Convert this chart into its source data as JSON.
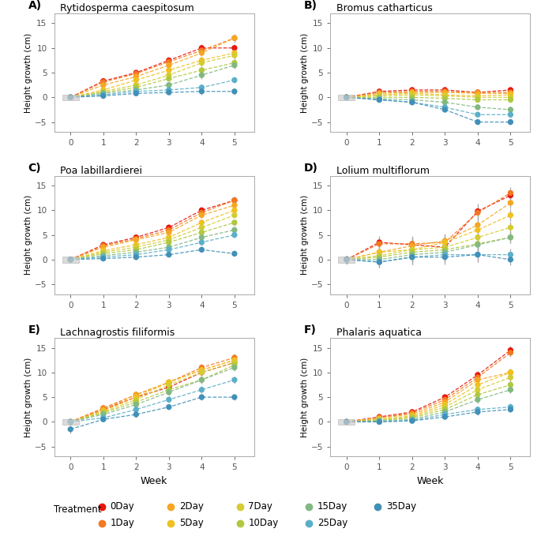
{
  "panels": [
    {
      "label": "A)",
      "title": "Rytidosperma caespitosum",
      "weeks": [
        0,
        1,
        2,
        3,
        4,
        5
      ],
      "series": {
        "0Day": {
          "means": [
            0.0,
            3.3,
            5.0,
            7.5,
            10.0,
            10.0
          ],
          "errors": [
            0.5,
            0.5,
            0.6,
            0.6,
            0.7,
            0.8
          ]
        },
        "1Day": {
          "means": [
            0.0,
            3.1,
            4.8,
            7.2,
            9.5,
            12.0
          ],
          "errors": [
            0.5,
            0.5,
            0.6,
            0.6,
            0.7,
            0.8
          ]
        },
        "2Day": {
          "means": [
            0.0,
            2.5,
            4.2,
            6.5,
            9.0,
            12.0
          ],
          "errors": [
            0.5,
            0.5,
            0.6,
            0.6,
            0.7,
            0.7
          ]
        },
        "5Day": {
          "means": [
            0.0,
            1.5,
            3.5,
            5.5,
            7.5,
            9.0
          ],
          "errors": [
            0.5,
            0.5,
            0.6,
            0.6,
            0.7,
            0.7
          ]
        },
        "7Day": {
          "means": [
            0.0,
            1.2,
            2.5,
            4.5,
            7.0,
            8.5
          ],
          "errors": [
            0.5,
            0.5,
            0.6,
            0.6,
            0.7,
            0.7
          ]
        },
        "10Day": {
          "means": [
            0.0,
            1.0,
            2.0,
            3.8,
            5.5,
            7.0
          ],
          "errors": [
            0.5,
            0.5,
            0.6,
            0.6,
            0.7,
            0.7
          ]
        },
        "15Day": {
          "means": [
            0.0,
            0.8,
            1.5,
            2.5,
            4.5,
            6.5
          ],
          "errors": [
            0.5,
            0.5,
            0.6,
            0.6,
            0.7,
            0.7
          ]
        },
        "25Day": {
          "means": [
            0.0,
            0.5,
            1.2,
            1.5,
            2.0,
            3.5
          ],
          "errors": [
            0.5,
            0.5,
            0.5,
            0.5,
            0.6,
            0.6
          ]
        },
        "35Day": {
          "means": [
            0.0,
            0.3,
            0.8,
            1.0,
            1.2,
            1.2
          ],
          "errors": [
            0.5,
            0.5,
            0.5,
            0.5,
            0.6,
            0.6
          ]
        }
      },
      "ylim": [
        -7,
        17
      ]
    },
    {
      "label": "B)",
      "title": "Bromus catharticus",
      "weeks": [
        0,
        1,
        2,
        3,
        4,
        5
      ],
      "series": {
        "0Day": {
          "means": [
            0.0,
            1.2,
            1.5,
            1.5,
            1.0,
            1.5
          ],
          "errors": [
            0.3,
            0.4,
            0.5,
            0.5,
            0.5,
            0.5
          ]
        },
        "1Day": {
          "means": [
            0.0,
            1.0,
            1.2,
            1.2,
            1.0,
            1.0
          ],
          "errors": [
            0.3,
            0.4,
            0.4,
            0.5,
            0.5,
            0.5
          ]
        },
        "2Day": {
          "means": [
            0.0,
            0.8,
            1.0,
            1.0,
            0.8,
            0.8
          ],
          "errors": [
            0.3,
            0.4,
            0.4,
            0.4,
            0.4,
            0.4
          ]
        },
        "5Day": {
          "means": [
            0.0,
            0.5,
            0.8,
            0.5,
            0.3,
            0.5
          ],
          "errors": [
            0.3,
            0.4,
            0.4,
            0.4,
            0.4,
            0.4
          ]
        },
        "7Day": {
          "means": [
            0.0,
            0.3,
            0.5,
            0.3,
            0.0,
            0.0
          ],
          "errors": [
            0.3,
            0.4,
            0.4,
            0.4,
            0.4,
            0.4
          ]
        },
        "10Day": {
          "means": [
            0.0,
            0.0,
            0.0,
            -0.2,
            -0.5,
            -0.5
          ],
          "errors": [
            0.3,
            0.4,
            0.4,
            0.4,
            0.4,
            0.4
          ]
        },
        "15Day": {
          "means": [
            0.0,
            -0.3,
            -0.5,
            -1.0,
            -2.0,
            -2.5
          ],
          "errors": [
            0.3,
            0.4,
            0.4,
            0.5,
            0.5,
            0.6
          ]
        },
        "25Day": {
          "means": [
            0.0,
            -0.5,
            -1.0,
            -2.0,
            -3.5,
            -3.5
          ],
          "errors": [
            0.3,
            0.4,
            0.4,
            0.5,
            0.5,
            0.6
          ]
        },
        "35Day": {
          "means": [
            0.0,
            -0.5,
            -1.0,
            -2.5,
            -5.0,
            -5.0
          ],
          "errors": [
            0.3,
            0.4,
            0.5,
            0.5,
            0.6,
            0.6
          ]
        }
      },
      "ylim": [
        -7,
        17
      ]
    },
    {
      "label": "C)",
      "title": "Poa labillardierei",
      "weeks": [
        0,
        1,
        2,
        3,
        4,
        5
      ],
      "series": {
        "0Day": {
          "means": [
            0.0,
            3.0,
            4.5,
            6.5,
            10.0,
            12.0
          ],
          "errors": [
            0.4,
            0.5,
            0.6,
            0.6,
            0.6,
            0.7
          ]
        },
        "1Day": {
          "means": [
            0.0,
            2.8,
            4.2,
            6.0,
            9.5,
            12.0
          ],
          "errors": [
            0.4,
            0.5,
            0.6,
            0.6,
            0.6,
            0.7
          ]
        },
        "2Day": {
          "means": [
            0.0,
            2.5,
            4.0,
            5.5,
            9.0,
            11.0
          ],
          "errors": [
            0.4,
            0.5,
            0.6,
            0.6,
            0.6,
            0.6
          ]
        },
        "5Day": {
          "means": [
            0.0,
            1.8,
            3.0,
            4.5,
            7.5,
            10.0
          ],
          "errors": [
            0.4,
            0.5,
            0.6,
            0.6,
            0.6,
            0.6
          ]
        },
        "7Day": {
          "means": [
            0.0,
            1.5,
            2.5,
            4.0,
            6.5,
            9.0
          ],
          "errors": [
            0.4,
            0.5,
            0.6,
            0.6,
            0.6,
            0.6
          ]
        },
        "10Day": {
          "means": [
            0.0,
            1.2,
            2.0,
            3.5,
            5.5,
            7.5
          ],
          "errors": [
            0.4,
            0.5,
            0.6,
            0.6,
            0.6,
            0.6
          ]
        },
        "15Day": {
          "means": [
            0.0,
            0.8,
            1.5,
            2.5,
            4.5,
            6.0
          ],
          "errors": [
            0.4,
            0.5,
            0.5,
            0.5,
            0.6,
            0.6
          ]
        },
        "25Day": {
          "means": [
            0.0,
            0.5,
            1.0,
            2.0,
            3.5,
            5.0
          ],
          "errors": [
            0.4,
            0.5,
            0.5,
            0.5,
            0.6,
            0.6
          ]
        },
        "35Day": {
          "means": [
            0.0,
            0.2,
            0.5,
            1.0,
            2.0,
            1.2
          ],
          "errors": [
            0.4,
            0.4,
            0.5,
            0.5,
            0.5,
            0.5
          ]
        }
      },
      "ylim": [
        -7,
        17
      ]
    },
    {
      "label": "D)",
      "title": "Lolium multiflorum",
      "weeks": [
        0,
        1,
        2,
        3,
        4,
        5
      ],
      "series": {
        "0Day": {
          "means": [
            0.0,
            3.5,
            3.0,
            2.5,
            9.8,
            13.0
          ],
          "errors": [
            0.8,
            1.2,
            1.5,
            1.5,
            1.5,
            1.2
          ]
        },
        "1Day": {
          "means": [
            0.0,
            3.2,
            3.2,
            3.5,
            9.5,
            13.5
          ],
          "errors": [
            0.8,
            1.2,
            1.5,
            1.5,
            1.5,
            1.2
          ]
        },
        "2Day": {
          "means": [
            0.0,
            1.5,
            2.8,
            3.8,
            7.0,
            11.5
          ],
          "errors": [
            0.8,
            1.2,
            1.5,
            1.5,
            1.5,
            1.2
          ]
        },
        "5Day": {
          "means": [
            0.0,
            1.5,
            2.0,
            3.5,
            6.0,
            9.0
          ],
          "errors": [
            0.8,
            1.2,
            1.5,
            1.5,
            1.5,
            1.2
          ]
        },
        "7Day": {
          "means": [
            0.0,
            0.8,
            2.0,
            2.5,
            4.5,
            6.5
          ],
          "errors": [
            0.8,
            1.2,
            1.5,
            1.5,
            1.5,
            1.2
          ]
        },
        "10Day": {
          "means": [
            0.0,
            0.5,
            1.5,
            2.0,
            3.2,
            4.5
          ],
          "errors": [
            0.8,
            1.2,
            1.5,
            1.5,
            1.5,
            1.2
          ]
        },
        "15Day": {
          "means": [
            0.0,
            0.0,
            1.0,
            1.5,
            3.0,
            4.5
          ],
          "errors": [
            0.8,
            1.2,
            1.5,
            1.5,
            1.5,
            1.2
          ]
        },
        "25Day": {
          "means": [
            0.0,
            -0.5,
            0.5,
            1.0,
            1.0,
            1.0
          ],
          "errors": [
            0.8,
            1.2,
            1.5,
            1.5,
            1.5,
            1.2
          ]
        },
        "35Day": {
          "means": [
            0.0,
            -0.5,
            0.5,
            0.5,
            1.0,
            0.0
          ],
          "errors": [
            0.8,
            1.2,
            1.5,
            1.5,
            1.5,
            1.2
          ]
        }
      },
      "ylim": [
        -7,
        17
      ]
    },
    {
      "label": "E)",
      "title": "Lachnagrostis filiformis",
      "weeks": [
        0,
        1,
        2,
        3,
        4,
        5
      ],
      "series": {
        "0Day": {
          "means": [
            0.0,
            2.5,
            5.0,
            7.0,
            10.0,
            12.0
          ],
          "errors": [
            0.5,
            0.5,
            0.6,
            0.6,
            0.7,
            0.8
          ]
        },
        "1Day": {
          "means": [
            0.0,
            2.8,
            5.5,
            8.0,
            11.0,
            13.0
          ],
          "errors": [
            0.5,
            0.5,
            0.6,
            0.6,
            0.7,
            0.8
          ]
        },
        "2Day": {
          "means": [
            0.0,
            2.5,
            5.5,
            8.0,
            10.5,
            12.5
          ],
          "errors": [
            0.5,
            0.5,
            0.6,
            0.6,
            0.7,
            0.8
          ]
        },
        "5Day": {
          "means": [
            0.0,
            2.2,
            5.0,
            8.0,
            10.5,
            12.5
          ],
          "errors": [
            0.5,
            0.5,
            0.6,
            0.6,
            0.7,
            0.8
          ]
        },
        "7Day": {
          "means": [
            0.0,
            2.0,
            4.5,
            7.5,
            10.0,
            12.0
          ],
          "errors": [
            0.5,
            0.5,
            0.6,
            0.6,
            0.7,
            0.7
          ]
        },
        "10Day": {
          "means": [
            0.0,
            1.8,
            4.0,
            6.5,
            8.5,
            11.5
          ],
          "errors": [
            0.5,
            0.5,
            0.6,
            0.6,
            0.7,
            0.7
          ]
        },
        "15Day": {
          "means": [
            0.0,
            1.5,
            3.5,
            6.0,
            8.5,
            11.0
          ],
          "errors": [
            0.5,
            0.5,
            0.6,
            0.6,
            0.7,
            0.7
          ]
        },
        "25Day": {
          "means": [
            0.0,
            0.8,
            2.5,
            4.5,
            6.5,
            8.5
          ],
          "errors": [
            0.5,
            0.5,
            0.6,
            0.6,
            0.7,
            0.7
          ]
        },
        "35Day": {
          "means": [
            -1.5,
            0.5,
            1.5,
            3.0,
            5.0,
            5.0
          ],
          "errors": [
            0.8,
            0.5,
            0.6,
            0.6,
            0.7,
            0.7
          ]
        }
      },
      "ylim": [
        -7,
        17
      ]
    },
    {
      "label": "F)",
      "title": "Phalaris aquatica",
      "weeks": [
        0,
        1,
        2,
        3,
        4,
        5
      ],
      "series": {
        "0Day": {
          "means": [
            0.0,
            1.0,
            2.0,
            5.0,
            9.5,
            14.5
          ],
          "errors": [
            0.3,
            0.5,
            0.6,
            0.7,
            0.8,
            0.9
          ]
        },
        "1Day": {
          "means": [
            0.0,
            0.8,
            1.8,
            4.5,
            9.0,
            14.0
          ],
          "errors": [
            0.3,
            0.5,
            0.6,
            0.7,
            0.8,
            0.9
          ]
        },
        "2Day": {
          "means": [
            0.0,
            0.8,
            1.5,
            4.0,
            8.5,
            10.0
          ],
          "errors": [
            0.3,
            0.5,
            0.6,
            0.7,
            0.8,
            0.8
          ]
        },
        "5Day": {
          "means": [
            0.0,
            0.5,
            1.2,
            3.5,
            7.5,
            10.0
          ],
          "errors": [
            0.3,
            0.5,
            0.6,
            0.7,
            0.8,
            0.8
          ]
        },
        "7Day": {
          "means": [
            0.0,
            0.5,
            1.0,
            3.0,
            6.5,
            9.0
          ],
          "errors": [
            0.3,
            0.5,
            0.6,
            0.7,
            0.8,
            0.8
          ]
        },
        "10Day": {
          "means": [
            0.0,
            0.3,
            0.8,
            2.5,
            5.5,
            7.5
          ],
          "errors": [
            0.3,
            0.5,
            0.6,
            0.7,
            0.8,
            0.8
          ]
        },
        "15Day": {
          "means": [
            0.0,
            0.2,
            0.5,
            2.0,
            4.5,
            6.5
          ],
          "errors": [
            0.3,
            0.5,
            0.5,
            0.6,
            0.7,
            0.7
          ]
        },
        "25Day": {
          "means": [
            0.0,
            0.0,
            0.3,
            1.5,
            2.5,
            3.0
          ],
          "errors": [
            0.3,
            0.4,
            0.5,
            0.6,
            0.6,
            0.7
          ]
        },
        "35Day": {
          "means": [
            0.0,
            0.0,
            0.2,
            1.0,
            2.0,
            2.5
          ],
          "errors": [
            0.3,
            0.4,
            0.5,
            0.5,
            0.6,
            0.6
          ]
        }
      },
      "ylim": [
        -7,
        17
      ]
    }
  ],
  "treatment_colors": {
    "0Day": "#E8160C",
    "1Day": "#F47820",
    "2Day": "#F5A623",
    "5Day": "#F0C020",
    "7Day": "#D4CC30",
    "10Day": "#B0C840",
    "15Day": "#82B882",
    "25Day": "#5BAFC8",
    "35Day": "#4190B8"
  },
  "treatment_order": [
    "0Day",
    "1Day",
    "2Day",
    "5Day",
    "7Day",
    "10Day",
    "15Day",
    "25Day",
    "35Day"
  ],
  "legend_row1": [
    "0Day",
    "2Day",
    "7Day",
    "15Day",
    "35Day"
  ],
  "legend_row2": [
    "1Day",
    "5Day",
    "10Day",
    "25Day"
  ],
  "xlabel": "Week",
  "ylabel": "Height growth (cm)",
  "background_color": "#FFFFFF",
  "panel_bg": "#FFFFFF"
}
